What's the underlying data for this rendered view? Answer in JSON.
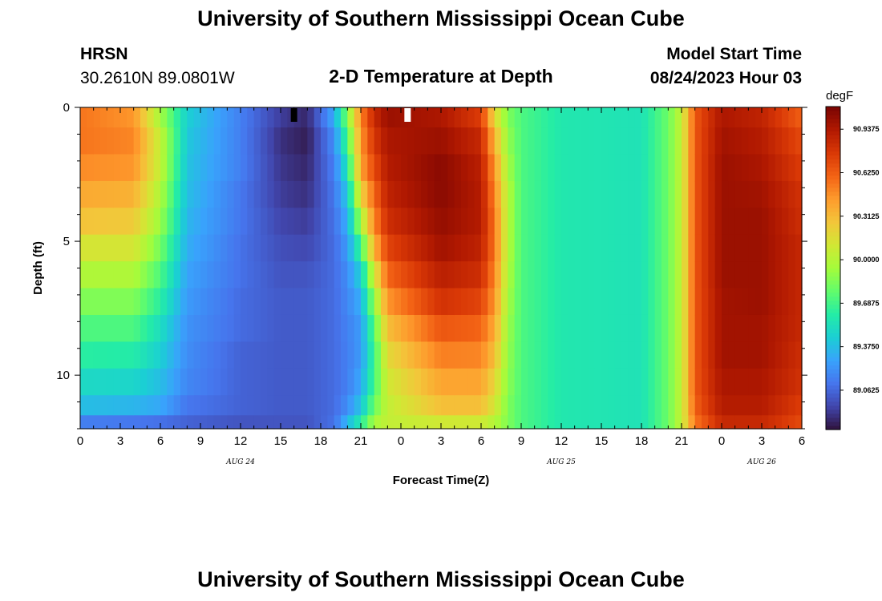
{
  "header": {
    "title": "University of Southern Mississippi Ocean Cube",
    "station": "HRSN",
    "coords": "30.2610N  89.0801W",
    "subtitle": "2-D Temperature at Depth",
    "model_label": "Model Start Time",
    "model_time": "08/24/2023 Hour 03"
  },
  "footer": {
    "title": "University of Southern Mississippi Ocean Cube"
  },
  "chart_data": {
    "type": "heatmap",
    "title": "2-D Temperature at Depth",
    "xlabel": "Forecast Time(Z)",
    "ylabel": "Depth (ft)",
    "x_ticks": [
      "0",
      "3",
      "6",
      "9",
      "12",
      "15",
      "18",
      "21",
      "0",
      "3",
      "6",
      "9",
      "12",
      "15",
      "18",
      "21",
      "0",
      "3",
      "6"
    ],
    "x_date_labels": [
      {
        "label": "AUG 24",
        "hour_offset": 12
      },
      {
        "label": "AUG 25",
        "hour_offset": 36
      },
      {
        "label": "AUG 26",
        "hour_offset": 51
      }
    ],
    "x_range_hours": [
      0,
      54
    ],
    "y_ticks": [
      "0",
      "5",
      "10"
    ],
    "y_range_ft": [
      0,
      12
    ],
    "colorbar": {
      "units": "degF",
      "labels": [
        "90.9375",
        "90.6250",
        "90.3125",
        "90.0000",
        "89.6875",
        "89.3750",
        "89.0625"
      ],
      "range": [
        88.78,
        91.1
      ],
      "colormap": [
        "#30123b",
        "#4145ab",
        "#4675ed",
        "#39a2fc",
        "#1bcfd4",
        "#24eca6",
        "#61fc6c",
        "#a4fc3b",
        "#d1e834",
        "#f3c63a",
        "#fe9b2d",
        "#f36315",
        "#d93806",
        "#b11901",
        "#7a0402"
      ]
    },
    "depth_levels_ft": [
      0.25,
      1.25,
      2.25,
      3.25,
      4.25,
      5.25,
      6.25,
      7.25,
      8.25,
      9.25,
      10.25,
      11.25,
      11.75
    ],
    "temperature_profiles": [
      {
        "hour": 0,
        "temps": [
          90.55,
          90.55,
          90.48,
          90.38,
          90.28,
          90.12,
          89.98,
          89.85,
          89.72,
          89.62,
          89.5,
          89.38,
          89.15
        ]
      },
      {
        "hour": 4,
        "temps": [
          90.45,
          90.5,
          90.45,
          90.35,
          90.25,
          90.12,
          89.98,
          89.85,
          89.72,
          89.6,
          89.48,
          89.35,
          89.12
        ]
      },
      {
        "hour": 6,
        "temps": [
          89.95,
          90.05,
          90.05,
          89.98,
          89.92,
          89.82,
          89.72,
          89.62,
          89.52,
          89.45,
          89.38,
          89.3,
          89.1
        ]
      },
      {
        "hour": 8,
        "temps": [
          89.45,
          89.42,
          89.4,
          89.38,
          89.35,
          89.32,
          89.28,
          89.25,
          89.22,
          89.2,
          89.18,
          89.12,
          89.05
        ]
      },
      {
        "hour": 12,
        "temps": [
          89.15,
          89.15,
          89.15,
          89.12,
          89.12,
          89.1,
          89.1,
          89.08,
          89.08,
          89.05,
          89.05,
          89.05,
          89.0
        ]
      },
      {
        "hour": 15,
        "temps": [
          88.92,
          88.88,
          88.9,
          88.92,
          88.95,
          88.98,
          89.0,
          89.02,
          89.02,
          89.02,
          89.02,
          89.02,
          89.0
        ]
      },
      {
        "hour": 17,
        "temps": [
          88.85,
          88.82,
          88.85,
          88.88,
          88.92,
          88.96,
          89.0,
          89.02,
          89.02,
          89.02,
          89.02,
          89.02,
          89.0
        ]
      },
      {
        "hour": 19,
        "temps": [
          89.3,
          89.2,
          89.15,
          89.12,
          89.1,
          89.08,
          89.08,
          89.08,
          89.08,
          89.08,
          89.08,
          89.08,
          89.1
        ]
      },
      {
        "hour": 20,
        "temps": [
          89.85,
          89.7,
          89.55,
          89.42,
          89.32,
          89.25,
          89.2,
          89.18,
          89.16,
          89.15,
          89.15,
          89.2,
          89.35
        ]
      },
      {
        "hour": 21,
        "temps": [
          90.5,
          90.45,
          90.4,
          90.2,
          89.95,
          89.68,
          89.45,
          89.32,
          89.25,
          89.25,
          89.3,
          89.4,
          89.6
        ]
      },
      {
        "hour": 22,
        "temps": [
          90.85,
          90.78,
          90.7,
          90.6,
          90.5,
          90.35,
          90.1,
          89.9,
          89.75,
          89.68,
          89.7,
          89.8,
          89.95
        ]
      },
      {
        "hour": 23,
        "temps": [
          91.0,
          90.95,
          90.92,
          90.88,
          90.82,
          90.72,
          90.6,
          90.45,
          90.3,
          90.18,
          90.1,
          90.05,
          90.05
        ]
      },
      {
        "hour": 27,
        "temps": [
          90.95,
          91.0,
          91.05,
          91.05,
          91.02,
          90.98,
          90.9,
          90.8,
          90.65,
          90.52,
          90.4,
          90.3,
          90.1
        ]
      },
      {
        "hour": 30,
        "temps": [
          90.75,
          90.85,
          90.9,
          90.92,
          90.92,
          90.88,
          90.82,
          90.72,
          90.6,
          90.5,
          90.4,
          90.3,
          90.1
        ]
      },
      {
        "hour": 31,
        "temps": [
          90.2,
          90.35,
          90.45,
          90.5,
          90.55,
          90.55,
          90.5,
          90.45,
          90.38,
          90.3,
          90.2,
          90.12,
          90.0
        ]
      },
      {
        "hour": 32,
        "temps": [
          89.85,
          89.9,
          89.95,
          90.0,
          90.0,
          90.0,
          89.98,
          89.95,
          89.92,
          89.9,
          89.88,
          89.85,
          89.85
        ]
      },
      {
        "hour": 33,
        "temps": [
          89.72,
          89.72,
          89.72,
          89.72,
          89.72,
          89.72,
          89.72,
          89.72,
          89.72,
          89.72,
          89.72,
          89.72,
          89.72
        ]
      },
      {
        "hour": 36,
        "temps": [
          89.58,
          89.58,
          89.58,
          89.58,
          89.58,
          89.58,
          89.58,
          89.58,
          89.58,
          89.58,
          89.58,
          89.58,
          89.58
        ]
      },
      {
        "hour": 42,
        "temps": [
          89.55,
          89.55,
          89.55,
          89.55,
          89.55,
          89.55,
          89.55,
          89.55,
          89.55,
          89.55,
          89.55,
          89.55,
          89.55
        ]
      },
      {
        "hour": 44,
        "temps": [
          89.8,
          89.8,
          89.8,
          89.8,
          89.8,
          89.8,
          89.8,
          89.8,
          89.8,
          89.8,
          89.8,
          89.8,
          89.8
        ]
      },
      {
        "hour": 45,
        "temps": [
          90.05,
          90.05,
          90.05,
          90.05,
          90.05,
          90.05,
          90.05,
          90.05,
          90.05,
          90.05,
          90.05,
          90.05,
          90.05
        ]
      },
      {
        "hour": 46,
        "temps": [
          90.65,
          90.65,
          90.65,
          90.65,
          90.65,
          90.65,
          90.65,
          90.65,
          90.65,
          90.65,
          90.65,
          90.62,
          90.55
        ]
      },
      {
        "hour": 48,
        "temps": [
          90.95,
          90.98,
          91.0,
          91.0,
          91.0,
          91.0,
          91.0,
          90.98,
          90.98,
          90.98,
          90.95,
          90.92,
          90.85
        ]
      },
      {
        "hour": 51,
        "temps": [
          90.88,
          90.92,
          90.95,
          90.98,
          91.0,
          91.0,
          91.0,
          91.0,
          90.98,
          90.98,
          90.95,
          90.92,
          90.85
        ]
      },
      {
        "hour": 54,
        "temps": [
          90.62,
          90.7,
          90.75,
          90.8,
          90.82,
          90.85,
          90.85,
          90.85,
          90.85,
          90.82,
          90.8,
          90.75,
          90.7
        ]
      }
    ],
    "markers": [
      {
        "hour": 16,
        "color": "#000000"
      },
      {
        "hour": 24.5,
        "color": "#ffffff"
      }
    ]
  }
}
